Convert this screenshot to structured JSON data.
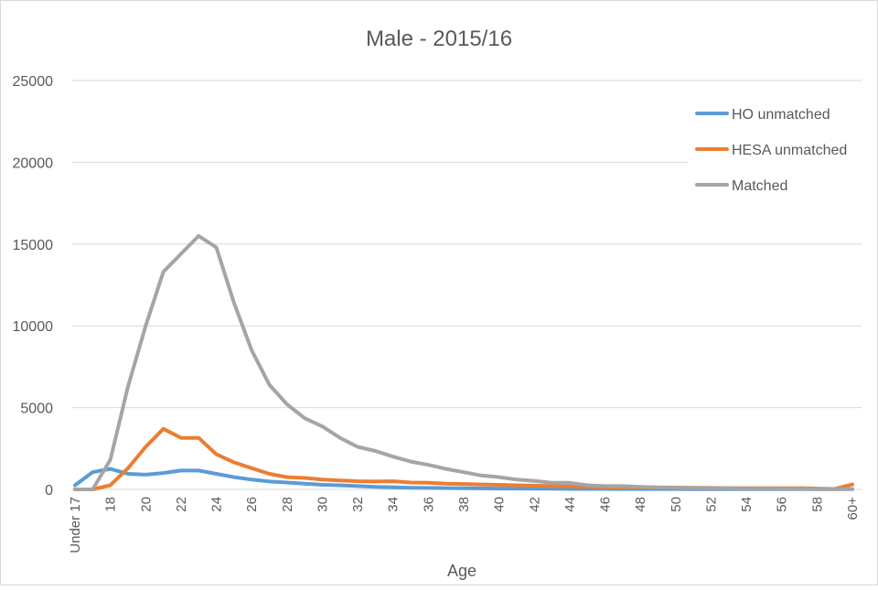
{
  "chart_data": {
    "type": "line",
    "title": "Male - 2015/16",
    "xlabel": "Age",
    "ylabel": "",
    "ylim": [
      0,
      25000
    ],
    "yticks": [
      "0",
      "5000",
      "10000",
      "15000",
      "20000",
      "25000"
    ],
    "grid": true,
    "legend": "right",
    "x": [
      "Under 17",
      "17",
      "18",
      "19",
      "20",
      "21",
      "22",
      "23",
      "24",
      "25",
      "26",
      "27",
      "28",
      "29",
      "30",
      "31",
      "32",
      "33",
      "34",
      "35",
      "36",
      "37",
      "38",
      "39",
      "40",
      "41",
      "42",
      "43",
      "44",
      "45",
      "46",
      "47",
      "48",
      "49",
      "50",
      "51",
      "52",
      "53",
      "54",
      "55",
      "56",
      "57",
      "58",
      "59",
      "60+"
    ],
    "xtick_labels": [
      "Under 17",
      "18",
      "20",
      "22",
      "24",
      "26",
      "28",
      "30",
      "32",
      "34",
      "36",
      "38",
      "40",
      "42",
      "44",
      "46",
      "48",
      "50",
      "52",
      "54",
      "56",
      "58",
      "60+"
    ],
    "series": [
      {
        "name": "HO unmatched",
        "color": "#5b9bd5",
        "values": [
          250,
          1050,
          1250,
          950,
          900,
          1000,
          1150,
          1150,
          950,
          750,
          600,
          480,
          420,
          350,
          280,
          250,
          200,
          150,
          130,
          100,
          90,
          80,
          70,
          60,
          50,
          50,
          40,
          40,
          30,
          30,
          30,
          20,
          20,
          20,
          20,
          15,
          15,
          15,
          10,
          10,
          10,
          10,
          10,
          10,
          10
        ]
      },
      {
        "name": "HESA unmatched",
        "color": "#ed7d31",
        "values": [
          0,
          0,
          250,
          1300,
          2600,
          3700,
          3150,
          3150,
          2150,
          1650,
          1300,
          950,
          750,
          700,
          600,
          550,
          500,
          480,
          500,
          420,
          400,
          350,
          330,
          300,
          280,
          250,
          230,
          200,
          180,
          150,
          130,
          120,
          120,
          120,
          110,
          100,
          90,
          80,
          80,
          80,
          80,
          80,
          50,
          30,
          300
        ]
      },
      {
        "name": "Matched",
        "color": "#a5a5a5",
        "values": [
          0,
          0,
          1800,
          6300,
          10000,
          13300,
          14400,
          15500,
          14800,
          11400,
          8500,
          6400,
          5200,
          4350,
          3850,
          3150,
          2600,
          2350,
          2000,
          1700,
          1500,
          1250,
          1050,
          850,
          750,
          600,
          520,
          400,
          400,
          250,
          200,
          200,
          150,
          120,
          100,
          80,
          70,
          60,
          50,
          50,
          40,
          30,
          20,
          20,
          20
        ]
      }
    ]
  }
}
